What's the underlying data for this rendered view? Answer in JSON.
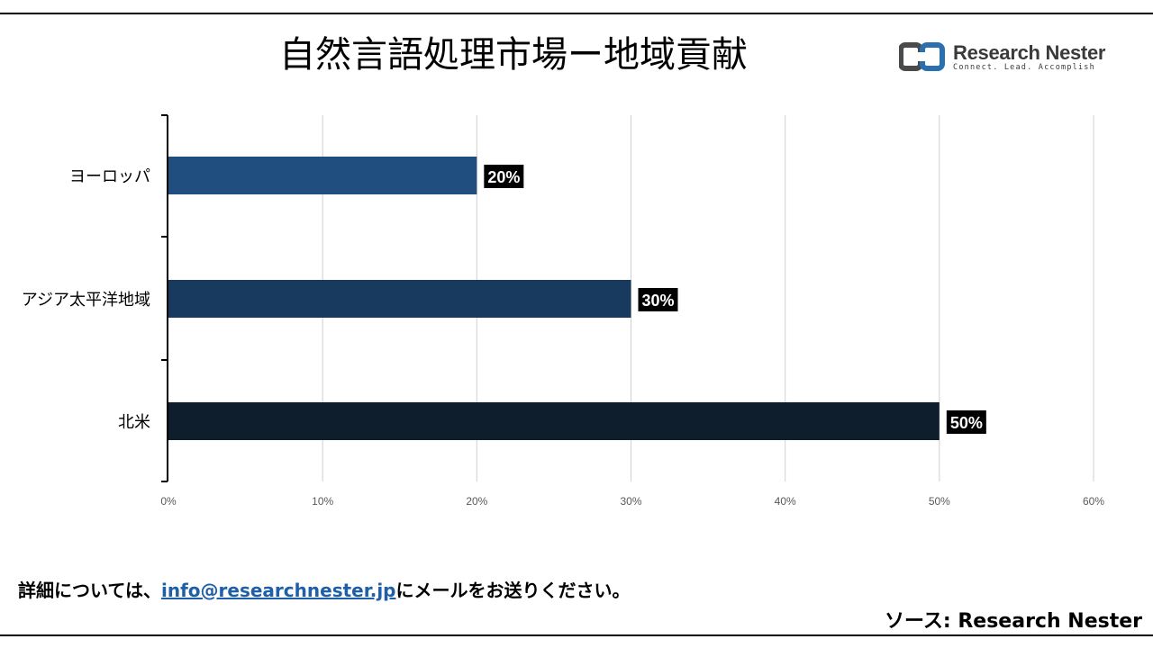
{
  "title": "自然言語処理市場ー地域貢献",
  "logo": {
    "name": "Research Nester",
    "tagline": "Connect. Lead. Accomplish"
  },
  "footer": {
    "prefix": "詳細については、",
    "email": "info@researchnester.jp",
    "suffix": "にメールをお送りください。",
    "source": "ソース: Research Nester"
  },
  "colors": {
    "europe": "#1f4e7f",
    "asia_pacific": "#173a5e",
    "north_america": "#0e1e2c",
    "label_bg": "#000000",
    "gridline": "#d0d0d0"
  },
  "chart_data": {
    "type": "bar",
    "orientation": "horizontal",
    "categories": [
      "ヨーロッパ",
      "アジア太平洋地域",
      "北米"
    ],
    "values": [
      20,
      30,
      50
    ],
    "data_labels": [
      "20%",
      "30%",
      "50%"
    ],
    "xlim": [
      0,
      60
    ],
    "x_ticks": [
      "0%",
      "10%",
      "20%",
      "30%",
      "40%",
      "50%",
      "60%"
    ],
    "grid": "vertical",
    "legend": "none"
  }
}
